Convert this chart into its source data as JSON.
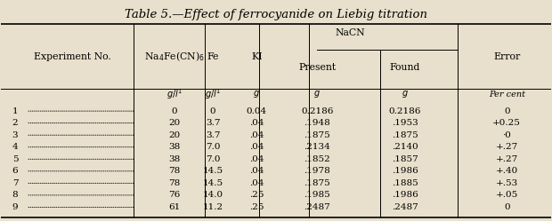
{
  "title": "Table 5.—Effect of ferrocyanide on Liebig titration",
  "bg_color": "#e8e0cc",
  "header1": [
    "Experiment No.",
    "Na₄Fe(CN)₆",
    "Fe",
    "KI",
    "NaCN",
    "",
    "Error"
  ],
  "header2": [
    "",
    "",
    "",
    "",
    "Present",
    "Found",
    ""
  ],
  "units": [
    "",
    "g/l¹",
    "g/l¹",
    "g",
    "g",
    "g",
    "Per cent"
  ],
  "rows": [
    [
      "1",
      "0",
      "0",
      "0.04",
      "0.2186",
      "0.2186",
      "0"
    ],
    [
      "2",
      "20",
      "3.7",
      ".04",
      ".1948",
      ".1953",
      "+0.25"
    ],
    [
      "3",
      "20",
      "3.7",
      ".04",
      ".1875",
      ".1875",
      "·0"
    ],
    [
      "4",
      "38",
      "7.0",
      ".04",
      ".2134",
      ".2140",
      "+.27"
    ],
    [
      "5",
      "38",
      "7.0",
      ".04",
      ".1852",
      ".1857",
      "+.27"
    ],
    [
      "6",
      "78",
      "14.5",
      ".04",
      ".1978",
      ".1986",
      "+.40"
    ],
    [
      "7",
      "78",
      "14.5",
      ".04",
      ".1875",
      ".1885",
      "+.53"
    ],
    [
      "8",
      "76",
      "14.0",
      ".25",
      ".1985",
      ".1986",
      "+.05"
    ],
    [
      "9",
      "61",
      "11.2",
      ".25",
      ".2487",
      ".2487",
      "0"
    ]
  ]
}
